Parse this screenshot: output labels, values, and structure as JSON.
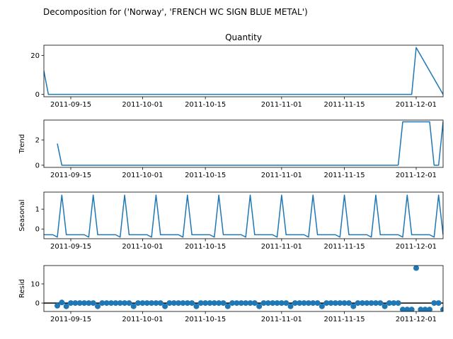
{
  "figure": {
    "suptitle": "Decomposition for ('Norway', 'FRENCH WC SIGN BLUE METAL')",
    "line_color": "#1f77b4",
    "zero_line_color": "#000000"
  },
  "chart_data": [
    {
      "type": "line",
      "title": "Quantity",
      "ylabel": "",
      "x_start": "2011-09-09",
      "x_end": "2011-12-07",
      "xlim": [
        "2011-09-09",
        "2011-12-07"
      ],
      "ylim": [
        -1.2,
        25.2
      ],
      "yticks": [
        0,
        20
      ],
      "ytick_labels": [
        "0",
        "20"
      ],
      "xticks": [
        "2011-09-15",
        "2011-10-01",
        "2011-10-15",
        "2011-11-01",
        "2011-11-15",
        "2011-12-01"
      ],
      "x": [
        "2011-09-09",
        "2011-09-10",
        "2011-11-30",
        "2011-12-01",
        "2011-12-07"
      ],
      "values": [
        12,
        0,
        0,
        24,
        0
      ]
    },
    {
      "type": "line",
      "title": "",
      "ylabel": "Trend",
      "xlim": [
        "2011-09-09",
        "2011-12-07"
      ],
      "ylim": [
        -0.17,
        3.57
      ],
      "yticks": [
        0,
        2
      ],
      "ytick_labels": [
        "0",
        "2"
      ],
      "xticks": [
        "2011-09-15",
        "2011-10-01",
        "2011-10-15",
        "2011-11-01",
        "2011-11-15",
        "2011-12-01"
      ],
      "segments": [
        {
          "x": [
            "2011-09-12",
            "2011-09-13",
            "2011-11-27"
          ],
          "values": [
            1.71,
            0,
            0
          ]
        },
        {
          "x": [
            "2011-11-27",
            "2011-11-28",
            "2011-12-04",
            "2011-12-05",
            "2011-12-06",
            "2011-12-07"
          ],
          "values": [
            0,
            3.43,
            3.43,
            0,
            0,
            3.43
          ]
        }
      ]
    },
    {
      "type": "line",
      "title": "",
      "ylabel": "Seasonal",
      "xlim": [
        "2011-09-09",
        "2011-12-07"
      ],
      "ylim": [
        -0.49,
        1.86
      ],
      "yticks": [
        0,
        1
      ],
      "ytick_labels": [
        "0",
        "1"
      ],
      "xticks": [
        "2011-09-15",
        "2011-10-01",
        "2011-10-15",
        "2011-11-01",
        "2011-11-15",
        "2011-12-01"
      ],
      "pattern": [
        -0.29,
        -0.29,
        -0.29,
        -0.41,
        1.71,
        -0.29,
        -0.29
      ],
      "pattern_start": "2011-09-09"
    },
    {
      "type": "scatter",
      "title": "",
      "ylabel": "Resid",
      "xlim": [
        "2011-09-09",
        "2011-12-07"
      ],
      "ylim": [
        -4.4,
        19.6
      ],
      "yticks": [
        0,
        10
      ],
      "ytick_labels": [
        "0",
        "10"
      ],
      "xticks": [
        "2011-09-15",
        "2011-10-01",
        "2011-10-15",
        "2011-11-01",
        "2011-11-15",
        "2011-12-01"
      ],
      "zero_line": true,
      "x_start": "2011-09-12",
      "values": [
        -1.4,
        0.3,
        -1.7,
        0,
        0,
        0,
        0,
        0,
        0,
        -1.7,
        0,
        0,
        0,
        0,
        0,
        0,
        0,
        -1.7,
        0,
        0,
        0,
        0,
        0,
        0,
        -1.7,
        0,
        0,
        0,
        0,
        0,
        0,
        -1.7,
        0,
        0,
        0,
        0,
        0,
        0,
        -1.7,
        0,
        0,
        0,
        0,
        0,
        0,
        -1.7,
        0,
        0,
        0,
        0,
        0,
        0,
        -1.7,
        0,
        0,
        0,
        0,
        0,
        0,
        -1.7,
        0,
        0,
        0,
        0,
        0,
        0,
        -1.7,
        0,
        0,
        0,
        0,
        0,
        0,
        -1.7,
        0,
        0,
        0,
        -3.4,
        -3.4,
        -3.4,
        18.3,
        -3.4,
        -3.4,
        -3.4,
        0,
        0,
        -3.4
      ]
    }
  ]
}
